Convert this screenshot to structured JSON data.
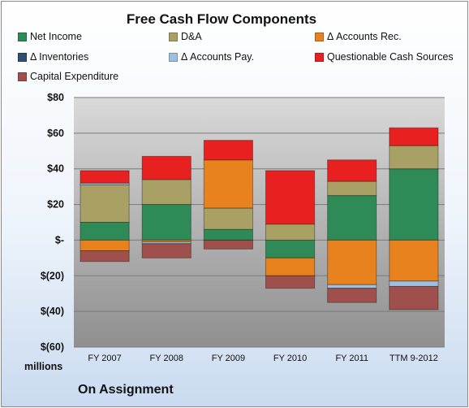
{
  "chart_data": {
    "type": "bar",
    "stacked": true,
    "title": "Free Cash Flow Components",
    "ylabel": "millions",
    "ylim": [
      -60,
      80
    ],
    "yticks": [
      80,
      60,
      40,
      20,
      0,
      -20,
      -40,
      -60
    ],
    "ytick_labels": [
      "$80",
      "$60",
      "$40",
      "$20",
      "$-",
      "$(20)",
      "$(40)",
      "$(60)"
    ],
    "grid": true,
    "categories": [
      "FY 2007",
      "FY 2008",
      "FY 2009",
      "FY 2010",
      "FY 2011",
      "TTM 9-2012"
    ],
    "series": [
      {
        "name": "Net Income",
        "color": "#2e8b57",
        "values": [
          10,
          20,
          6,
          -10,
          25,
          40
        ]
      },
      {
        "name": "D&A",
        "color": "#a8a064",
        "values": [
          21,
          14,
          12,
          9,
          8,
          13
        ]
      },
      {
        "name": "Δ Accounts Rec.",
        "color": "#e8821e",
        "values": [
          -6,
          -1,
          27,
          -10,
          -25,
          -23
        ]
      },
      {
        "name": "Δ Inventories",
        "color": "#2f4f6f",
        "values": [
          0,
          0,
          0,
          0,
          0,
          0
        ]
      },
      {
        "name": "Δ Accounts Pay.",
        "color": "#9fbfe0",
        "values": [
          1,
          -1,
          0,
          0,
          -2,
          -3
        ]
      },
      {
        "name": "Questionable Cash Sources",
        "color": "#e82020",
        "values": [
          7,
          13,
          11,
          30,
          12,
          10
        ]
      },
      {
        "name": "Capital Expenditure",
        "color": "#a0504c",
        "values": [
          -6,
          -8,
          -5,
          -7,
          -8,
          -13
        ]
      }
    ],
    "legend_position": "top"
  },
  "footer": {
    "company": "On Assignment"
  }
}
